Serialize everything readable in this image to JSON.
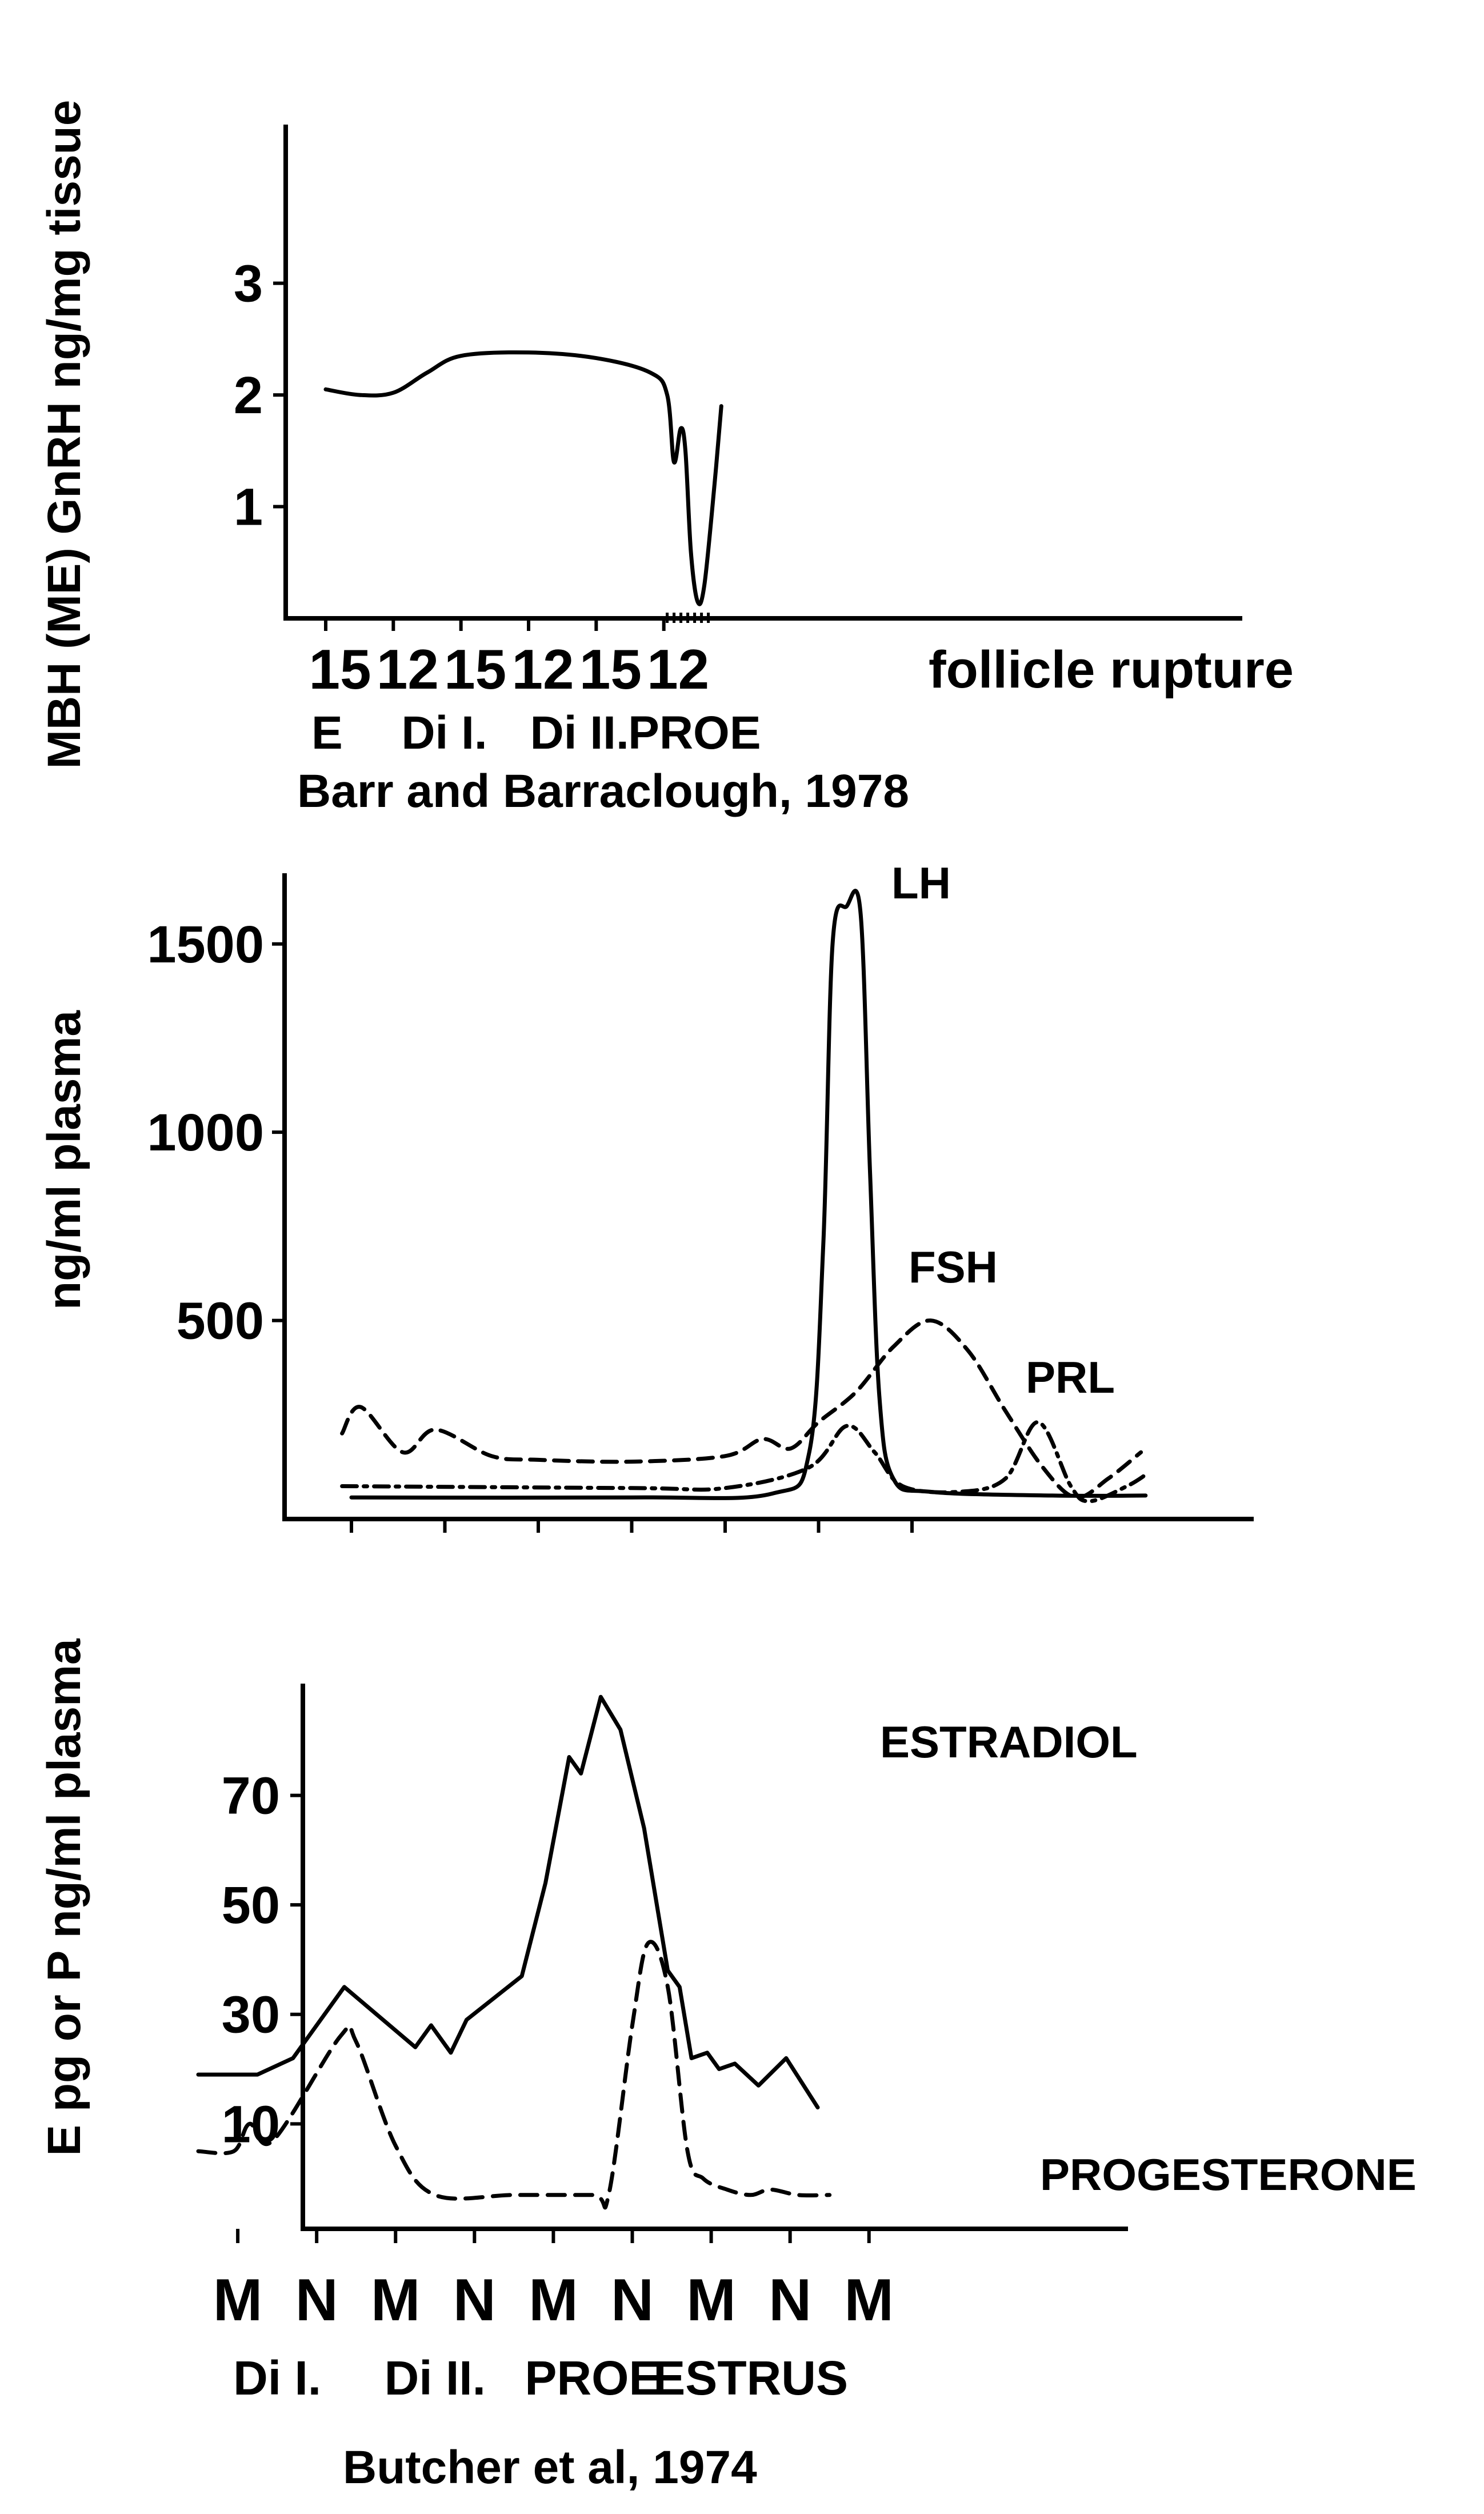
{
  "chart_data": [
    {
      "type": "line",
      "ylabel": "MBH (ME) GnRH ng/mg tissue",
      "yticks": [
        "1",
        "2",
        "3"
      ],
      "ylim": [
        0,
        4.4
      ],
      "xlim": [
        0,
        12
      ],
      "xticks": [
        "15",
        "12",
        "15",
        "12",
        "15",
        "12"
      ],
      "xtick_positions": [
        0,
        1,
        2,
        3,
        4,
        5
      ],
      "x_annotation": "follicle rupture",
      "phases": [
        {
          "label": "E",
          "x": 0
        },
        {
          "label": "Di I.",
          "x": 1.5
        },
        {
          "label": "Di II.",
          "x": 3.5
        },
        {
          "label": "PROE",
          "x": 5.2
        }
      ],
      "citation": "Barr and Barraclough, 1978",
      "series": [
        {
          "name": "",
          "points": [
            [
              0,
              2.05
            ],
            [
              0.5,
              2.0
            ],
            [
              1.0,
              2.02
            ],
            [
              1.5,
              2.2
            ],
            [
              2.0,
              2.35
            ],
            [
              3.0,
              2.38
            ],
            [
              4.0,
              2.33
            ],
            [
              4.8,
              2.2
            ],
            [
              5.05,
              2.0
            ],
            [
              5.15,
              1.4
            ],
            [
              5.25,
              1.7
            ],
            [
              5.32,
              1.5
            ],
            [
              5.4,
              0.6
            ],
            [
              5.5,
              0.15
            ],
            [
              5.6,
              0.3
            ],
            [
              5.75,
              1.2
            ],
            [
              5.85,
              1.9
            ]
          ]
        }
      ]
    },
    {
      "type": "line",
      "ylabel": "ng/ml plasma",
      "yticks": [
        "500",
        "1000",
        "1500"
      ],
      "ylim": [
        0,
        1700
      ],
      "xlim": [
        0,
        10
      ],
      "xtick_positions": [
        0,
        1,
        2,
        3,
        4,
        5,
        6
      ],
      "series": [
        {
          "name": "LH",
          "style": "solid",
          "points": [
            [
              0,
              30
            ],
            [
              3,
              30
            ],
            [
              4.5,
              40
            ],
            [
              4.9,
              150
            ],
            [
              5.05,
              700
            ],
            [
              5.15,
              1500
            ],
            [
              5.3,
              1600
            ],
            [
              5.45,
              1580
            ],
            [
              5.55,
              900
            ],
            [
              5.65,
              300
            ],
            [
              5.8,
              80
            ],
            [
              6.2,
              45
            ],
            [
              7.5,
              35
            ],
            [
              8.5,
              35
            ]
          ]
        },
        {
          "name": "FSH",
          "style": "dashed",
          "points": [
            [
              -0.1,
              200
            ],
            [
              0.1,
              270
            ],
            [
              0.55,
              150
            ],
            [
              0.9,
              210
            ],
            [
              1.5,
              140
            ],
            [
              2.0,
              130
            ],
            [
              3.0,
              125
            ],
            [
              4.0,
              140
            ],
            [
              4.4,
              185
            ],
            [
              4.7,
              160
            ],
            [
              5.0,
              230
            ],
            [
              5.4,
              310
            ],
            [
              5.8,
              430
            ],
            [
              6.2,
              500
            ],
            [
              6.6,
              420
            ],
            [
              7.0,
              260
            ],
            [
              7.4,
              110
            ],
            [
              7.75,
              30
            ],
            [
              8.1,
              80
            ],
            [
              8.45,
              150
            ]
          ]
        },
        {
          "name": "PRL",
          "style": "dashdot",
          "points": [
            [
              -0.1,
              60
            ],
            [
              3.0,
              55
            ],
            [
              4.0,
              55
            ],
            [
              4.9,
              110
            ],
            [
              5.3,
              220
            ],
            [
              5.6,
              150
            ],
            [
              5.9,
              60
            ],
            [
              6.5,
              45
            ],
            [
              7.0,
              80
            ],
            [
              7.35,
              230
            ],
            [
              7.7,
              60
            ],
            [
              7.9,
              20
            ],
            [
              8.3,
              60
            ],
            [
              8.5,
              90
            ]
          ]
        }
      ]
    },
    {
      "type": "line",
      "ylabel": "E pg or P ng/ml plasma",
      "yticks": [
        "10",
        "30",
        "50",
        "70"
      ],
      "ylim": [
        -5,
        90
      ],
      "xlim": [
        0,
        12
      ],
      "xticks": [
        "M",
        "N",
        "M",
        "N",
        "M",
        "N",
        "M",
        "N",
        "M"
      ],
      "xtick_positions": [
        1,
        2,
        3,
        4,
        5,
        6,
        7,
        8,
        9
      ],
      "phases": [
        {
          "label": "Di I.",
          "x": 1.5
        },
        {
          "label": "Di II.",
          "x": 3.5
        },
        {
          "label": "PROE",
          "x": 5.5
        },
        {
          "label": "ESTRUS",
          "x": 7.5
        }
      ],
      "citation": "Butcher et al, 1974",
      "series": [
        {
          "name": "ESTRADIOL",
          "style": "solid",
          "points": [
            [
              0.5,
              19
            ],
            [
              1.25,
              19
            ],
            [
              1.7,
              22
            ],
            [
              2.35,
              35
            ],
            [
              3.25,
              24
            ],
            [
              3.45,
              28
            ],
            [
              3.7,
              23
            ],
            [
              3.9,
              29
            ],
            [
              4.6,
              37
            ],
            [
              4.9,
              54
            ],
            [
              5.2,
              77
            ],
            [
              5.35,
              74
            ],
            [
              5.6,
              88
            ],
            [
              5.85,
              82
            ],
            [
              6.15,
              64
            ],
            [
              6.45,
              38
            ],
            [
              6.6,
              35
            ],
            [
              6.75,
              22
            ],
            [
              6.95,
              23
            ],
            [
              7.1,
              20
            ],
            [
              7.3,
              21
            ],
            [
              7.6,
              17
            ],
            [
              7.95,
              22
            ],
            [
              8.35,
              13
            ]
          ]
        },
        {
          "name": "PROGESTERONE",
          "style": "dashed",
          "points": [
            [
              0.5,
              5
            ],
            [
              0.95,
              5
            ],
            [
              1.15,
              10
            ],
            [
              1.45,
              7
            ],
            [
              2.3,
              26
            ],
            [
              2.5,
              25
            ],
            [
              3.0,
              6
            ],
            [
              3.5,
              -3
            ],
            [
              4.5,
              -3
            ],
            [
              5.5,
              -3
            ],
            [
              5.7,
              -3
            ],
            [
              6.0,
              28
            ],
            [
              6.2,
              43
            ],
            [
              6.45,
              35
            ],
            [
              6.7,
              5
            ],
            [
              6.9,
              0
            ],
            [
              7.2,
              -2
            ],
            [
              7.5,
              -3
            ],
            [
              7.75,
              -2
            ],
            [
              8.1,
              -3
            ],
            [
              8.5,
              -3
            ]
          ]
        }
      ]
    }
  ]
}
